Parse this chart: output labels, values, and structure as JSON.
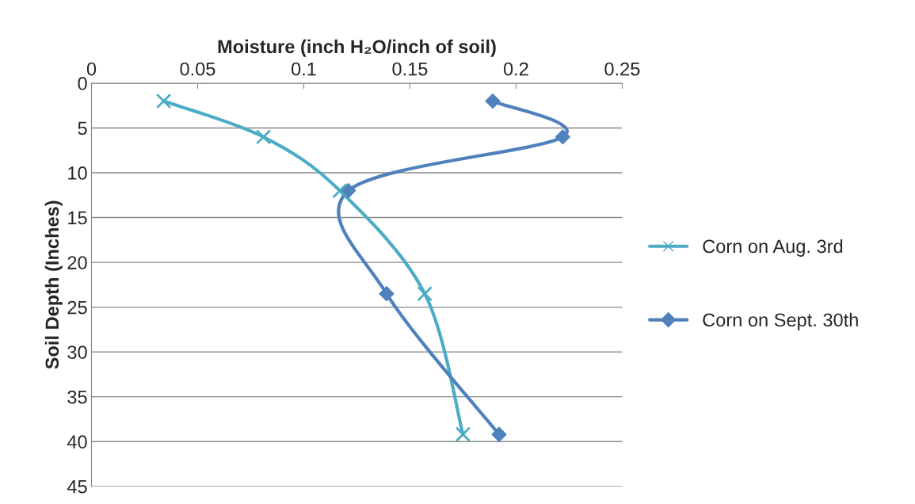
{
  "chart_data": {
    "type": "line",
    "xlabel": "Moisture (inch H₂O/inch of soil)",
    "ylabel": "Soil Depth (Inches)",
    "series": [
      {
        "name": "Corn on Aug. 3rd",
        "color": "#4bacc6",
        "marker": "cross",
        "x": [
          0.034,
          0.081,
          0.117,
          0.157,
          0.175
        ],
        "values": [
          2,
          6,
          12,
          23.5,
          39.2
        ]
      },
      {
        "name": "Corn on Sept. 30th",
        "color": "#4f81bd",
        "marker": "diamond",
        "x": [
          0.189,
          0.222,
          0.121,
          0.139,
          0.192
        ],
        "values": [
          2,
          6,
          12,
          23.5,
          39.2
        ]
      }
    ],
    "xlim": [
      0,
      0.25
    ],
    "xticks": [
      0,
      0.05,
      0.1,
      0.15,
      0.2,
      0.25
    ],
    "ylim": [
      45,
      0
    ],
    "yticks": [
      0,
      5,
      10,
      15,
      20,
      25,
      30,
      35,
      40,
      45
    ],
    "grid": "y",
    "legend": "right",
    "line_style": "solid"
  }
}
